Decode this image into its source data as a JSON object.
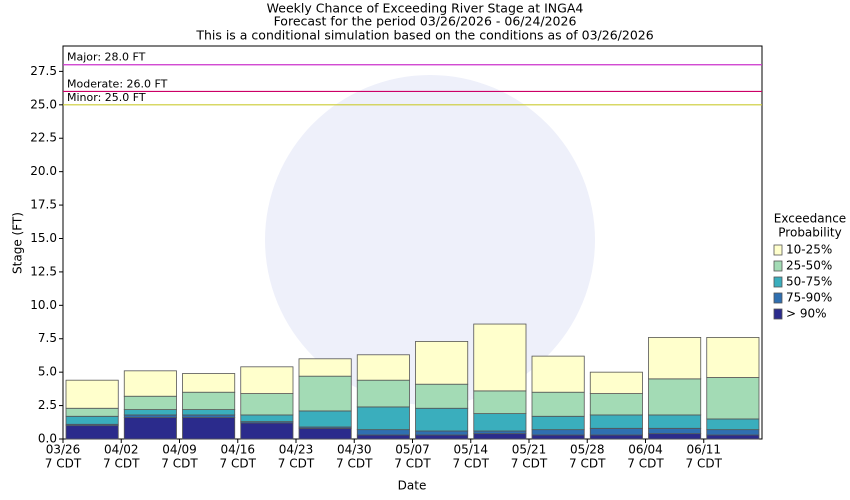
{
  "chart_data": {
    "type": "floating-bar",
    "title": "Weekly Chance of Exceeding River Stage at INGA4",
    "subtitle": "Forecast for the period 03/26/2026 - 06/24/2026",
    "note": "This is a conditional simulation based on the conditions as of 03/26/2026",
    "y_label": "Stage (FT)",
    "x_label": "Date",
    "categories": [
      "03/26",
      "04/02",
      "04/09",
      "04/16",
      "04/23",
      "04/30",
      "05/07",
      "05/14",
      "05/21",
      "05/28",
      "06/04",
      "06/11"
    ],
    "x_tick_sublabel": "7 CDT",
    "legend_title": [
      "Exceedance",
      "Probability"
    ],
    "series": [
      {
        "name": "> 90%",
        "color": "#2b2b8c",
        "values": [
          1.0,
          1.6,
          1.6,
          1.2,
          0.8,
          0.3,
          0.3,
          0.4,
          0.3,
          0.3,
          0.4,
          0.3
        ]
      },
      {
        "name": "75-90%",
        "color": "#2f6fb0",
        "values": [
          1.1,
          1.8,
          1.8,
          1.3,
          0.9,
          0.7,
          0.6,
          0.6,
          0.7,
          0.8,
          0.8,
          0.7
        ]
      },
      {
        "name": "50-75%",
        "color": "#3aaebd",
        "values": [
          1.7,
          2.2,
          2.2,
          1.8,
          2.1,
          2.4,
          2.3,
          1.9,
          1.7,
          1.8,
          1.8,
          1.5
        ]
      },
      {
        "name": "25-50%",
        "color": "#a3dbb5",
        "values": [
          2.3,
          3.2,
          3.5,
          3.4,
          4.7,
          4.4,
          4.1,
          3.6,
          3.5,
          3.4,
          4.5,
          4.6
        ]
      },
      {
        "name": "10-25%",
        "color": "#ffffcc",
        "values": [
          4.4,
          5.1,
          4.9,
          5.4,
          6.0,
          6.3,
          7.3,
          8.6,
          6.2,
          5.0,
          7.6,
          7.6
        ]
      }
    ],
    "thresholds": [
      {
        "label": "Major: 28.0 FT",
        "value": 28.0,
        "color": "#cc33cc"
      },
      {
        "label": "Moderate: 26.0 FT",
        "value": 26.0,
        "color": "#cc0066"
      },
      {
        "label": "Minor: 25.0 FT",
        "value": 25.0,
        "color": "#cccc33"
      }
    ],
    "ylim": [
      0,
      29.4
    ],
    "yticks": [
      {
        "value": 0,
        "label": "0.0"
      },
      {
        "value": 2.5,
        "label": "2.5"
      },
      {
        "value": 5,
        "label": "5.0"
      },
      {
        "value": 7.5,
        "label": "7.5"
      },
      {
        "value": 10,
        "label": "10.0"
      },
      {
        "value": 12.5,
        "label": "12.5"
      },
      {
        "value": 15,
        "label": "15.0"
      },
      {
        "value": 17.5,
        "label": "17.5"
      },
      {
        "value": 20,
        "label": "20.0"
      },
      {
        "value": 22.5,
        "label": "22.5"
      },
      {
        "value": 25,
        "label": "25.0"
      },
      {
        "value": 27.5,
        "label": "27.5"
      }
    ],
    "grid": false,
    "legend_position": "right"
  }
}
